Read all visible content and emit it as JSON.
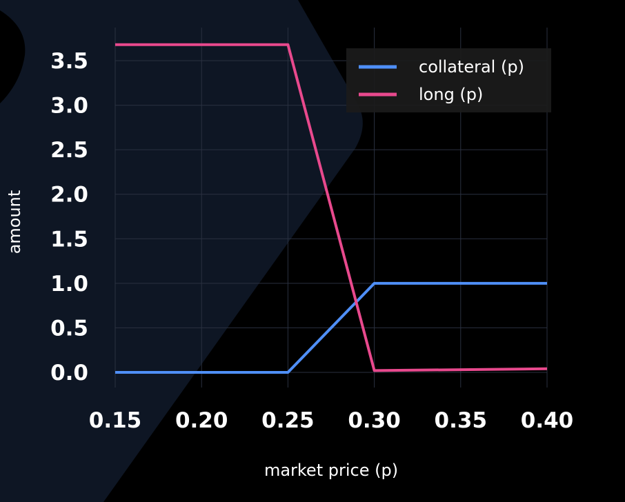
{
  "chart_data": {
    "type": "line",
    "xlabel": "market price (p)",
    "ylabel": "amount",
    "xlim": [
      0.15,
      0.4
    ],
    "ylim": [
      0.0,
      3.7
    ],
    "x_ticks": [
      "0.15",
      "0.20",
      "0.25",
      "0.30",
      "0.35",
      "0.40"
    ],
    "y_ticks": [
      "0.0",
      "0.5",
      "1.0",
      "1.5",
      "2.0",
      "2.5",
      "3.0",
      "3.5"
    ],
    "grid": true,
    "legend_position": "top-right",
    "series": [
      {
        "name": "collateral (p)",
        "color": "#4f8ff7",
        "x": [
          0.15,
          0.25,
          0.3,
          0.4
        ],
        "y": [
          0.0,
          0.0,
          1.0,
          1.0
        ]
      },
      {
        "name": "long (p)",
        "color": "#e8498d",
        "x": [
          0.15,
          0.25,
          0.3,
          0.4
        ],
        "y": [
          3.68,
          3.68,
          0.02,
          0.04
        ]
      }
    ]
  },
  "colors": {
    "background": "#000000",
    "panel": "#0e1624",
    "grid": "#2a3140"
  }
}
